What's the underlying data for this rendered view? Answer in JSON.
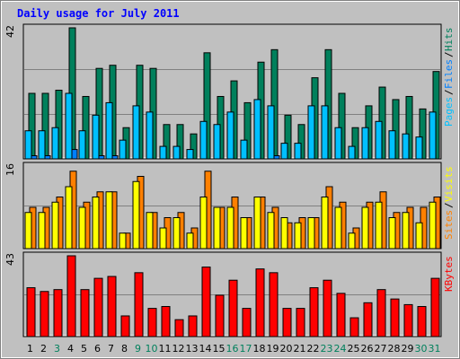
{
  "title": "Daily usage for July 2011",
  "colors": {
    "background": "#c0c0c0",
    "plot_background": "#c0c0c0",
    "title": "#0000ff",
    "hits": "#00805c",
    "files": "#0080ff",
    "pages": "#00c0ff",
    "visits": "#ffff00",
    "sites": "#ff8000",
    "kbytes": "#ff0000",
    "weekend_label": "#00805c",
    "weekday_label": "#000000"
  },
  "chart_data": [
    {
      "type": "bar",
      "panel": "top",
      "ymax_label": "42",
      "legend": [
        "Pages",
        "/",
        "Files",
        "/",
        "Hits"
      ],
      "categories": [
        "1",
        "2",
        "3",
        "4",
        "5",
        "6",
        "7",
        "8",
        "9",
        "10",
        "11",
        "12",
        "13",
        "14",
        "15",
        "16",
        "17",
        "18",
        "19",
        "20",
        "21",
        "22",
        "23",
        "24",
        "25",
        "26",
        "27",
        "28",
        "29",
        "30",
        "31"
      ],
      "series": [
        {
          "name": "Hits",
          "values": [
            21,
            21,
            22,
            42,
            20,
            29,
            30,
            10,
            30,
            29,
            11,
            11,
            8,
            34,
            20,
            25,
            18,
            31,
            35,
            14,
            11,
            26,
            35,
            21,
            10,
            17,
            23,
            19,
            20,
            16,
            28
          ]
        },
        {
          "name": "Files",
          "values": [
            1,
            1,
            0,
            3,
            0,
            1,
            1,
            0,
            0,
            0,
            0,
            0,
            0,
            0,
            0,
            0,
            0,
            0,
            1,
            0,
            0,
            0,
            0,
            0,
            0,
            0,
            0,
            0,
            0,
            0,
            0
          ]
        },
        {
          "name": "Pages",
          "values": [
            9,
            9,
            10,
            21,
            9,
            14,
            18,
            6,
            17,
            15,
            4,
            4,
            3,
            12,
            11,
            15,
            6,
            19,
            17,
            5,
            5,
            17,
            17,
            10,
            4,
            10,
            12,
            9,
            8,
            7,
            15
          ]
        }
      ]
    },
    {
      "type": "bar",
      "panel": "middle",
      "ymax_label": "16",
      "legend": [
        "Sites",
        "/",
        "Visits"
      ],
      "categories": [
        "1",
        "2",
        "3",
        "4",
        "5",
        "6",
        "7",
        "8",
        "9",
        "10",
        "11",
        "12",
        "13",
        "14",
        "15",
        "16",
        "17",
        "18",
        "19",
        "20",
        "21",
        "22",
        "23",
        "24",
        "25",
        "26",
        "27",
        "28",
        "29",
        "30",
        "31"
      ],
      "series": [
        {
          "name": "Visits",
          "values": [
            7,
            7,
            9,
            12,
            8,
            10,
            11,
            3,
            13,
            7,
            4,
            6,
            3,
            10,
            8,
            8,
            6,
            10,
            7,
            6,
            5,
            6,
            10,
            8,
            3,
            8,
            9,
            6,
            7,
            5,
            9
          ]
        },
        {
          "name": "Sites",
          "values": [
            8,
            8,
            10,
            15,
            9,
            11,
            11,
            3,
            14,
            7,
            6,
            7,
            4,
            15,
            8,
            10,
            6,
            10,
            8,
            5,
            6,
            6,
            12,
            9,
            4,
            9,
            11,
            7,
            8,
            8,
            10
          ]
        }
      ]
    },
    {
      "type": "bar",
      "panel": "bottom",
      "ymax_label": "43",
      "legend": [
        "KBytes"
      ],
      "categories": [
        "1",
        "2",
        "3",
        "4",
        "5",
        "6",
        "7",
        "8",
        "9",
        "10",
        "11",
        "12",
        "13",
        "14",
        "15",
        "16",
        "17",
        "18",
        "19",
        "20",
        "21",
        "22",
        "23",
        "24",
        "25",
        "26",
        "27",
        "28",
        "29",
        "30",
        "31"
      ],
      "series": [
        {
          "name": "KBytes",
          "values": [
            26,
            24,
            25,
            43,
            25,
            31,
            32,
            11,
            34,
            15,
            16,
            9,
            11,
            37,
            22,
            30,
            15,
            36,
            34,
            15,
            15,
            26,
            30,
            23,
            10,
            18,
            25,
            20,
            17,
            16,
            31
          ]
        }
      ]
    }
  ],
  "weekend_days": [
    "3",
    "9",
    "10",
    "16",
    "17",
    "23",
    "24",
    "30",
    "31"
  ]
}
